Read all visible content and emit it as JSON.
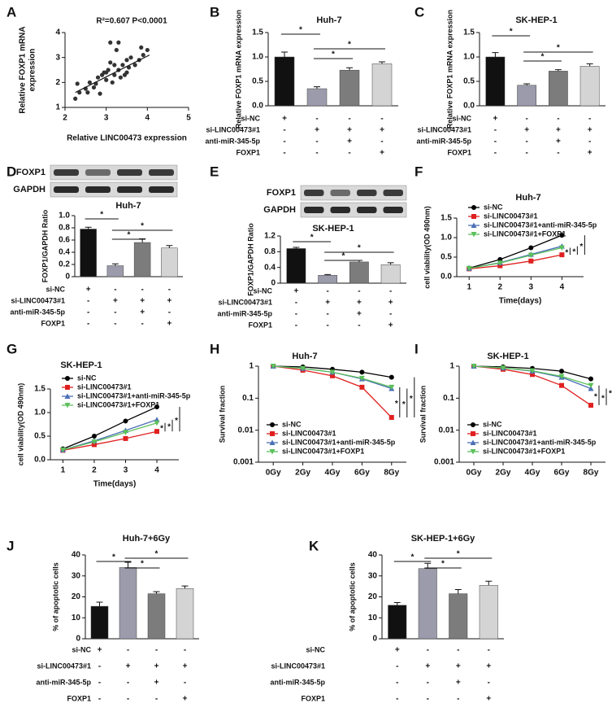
{
  "chart_data": [
    {
      "panel": "A",
      "type": "scatter",
      "annotation": "R²=0.607 P<0.0001",
      "ylabel": [
        "Relative FOXP1 mRNA",
        "expression"
      ],
      "xlabel": "Relative LINC00473 expression",
      "xlim": [
        2,
        5
      ],
      "xticks": [
        2,
        3,
        4,
        5
      ],
      "ylim": [
        1,
        4
      ],
      "yticks": [
        1,
        2,
        3,
        4
      ],
      "color": "#333333",
      "x": [
        2.25,
        2.3,
        2.35,
        2.5,
        2.55,
        2.6,
        2.7,
        2.75,
        2.8,
        2.85,
        2.9,
        2.95,
        3.0,
        3.0,
        3.05,
        3.1,
        3.15,
        3.2,
        3.2,
        3.25,
        3.3,
        3.3,
        3.35,
        3.4,
        3.45,
        3.5,
        3.5,
        3.55,
        3.6,
        3.7,
        3.8,
        3.85,
        3.9,
        4.0,
        3.1
      ],
      "y": [
        1.35,
        1.95,
        1.6,
        1.75,
        1.6,
        2.0,
        1.8,
        1.95,
        2.2,
        1.55,
        2.3,
        2.4,
        2.4,
        2.1,
        2.5,
        2.8,
        2.0,
        2.7,
        2.3,
        3.3,
        3.6,
        2.5,
        2.2,
        2.7,
        2.3,
        2.9,
        2.4,
        2.6,
        3.0,
        2.7,
        2.9,
        3.4,
        3.1,
        3.3,
        3.6
      ],
      "trend_line": {
        "x": [
          2.25,
          4.05
        ],
        "y": [
          1.6,
          3.1
        ]
      }
    },
    {
      "panel": "B",
      "type": "bar",
      "title": "Huh-7",
      "ylabel": "Relative FOXP1 mRNA expression",
      "categories": [
        null,
        null,
        null,
        null
      ],
      "values": [
        1.0,
        0.35,
        0.73,
        0.86
      ],
      "errors": [
        0.1,
        0.04,
        0.05,
        0.04
      ],
      "colors": [
        "#111111",
        "#9b9bab",
        "#7c7c7c",
        "#d4d4d4"
      ],
      "ylim": [
        0,
        1.5
      ],
      "yticks": [
        {
          "value": 0,
          "label": "0.0"
        },
        0.5,
        {
          "value": 1,
          "label": "1.0"
        },
        1.5
      ],
      "annotations": [
        "*",
        "*",
        "*"
      ],
      "conditions": [
        {
          "label": "si-NC",
          "signs": [
            "+",
            "-",
            "-",
            "-"
          ]
        },
        {
          "label": "si-LINC00473#1",
          "signs": [
            "-",
            "+",
            "+",
            "+"
          ]
        },
        {
          "label": "anti-miR-345-5p",
          "signs": [
            "-",
            "-",
            "+",
            "-"
          ]
        },
        {
          "label": "FOXP1",
          "signs": [
            "-",
            "-",
            "-",
            "+"
          ]
        }
      ]
    },
    {
      "panel": "C",
      "type": "bar",
      "title": "SK-HEP-1",
      "ylabel": "Relative FOXP1 mRNA expression",
      "categories": [
        null,
        null,
        null,
        null
      ],
      "values": [
        1.0,
        0.42,
        0.71,
        0.81
      ],
      "errors": [
        0.09,
        0.03,
        0.03,
        0.05
      ],
      "colors": [
        "#111111",
        "#9b9bab",
        "#7c7c7c",
        "#d4d4d4"
      ],
      "ylim": [
        0,
        1.5
      ],
      "yticks": [
        {
          "value": 0,
          "label": "0.0"
        },
        0.5,
        {
          "value": 1,
          "label": "1.0"
        },
        1.5
      ],
      "annotations": [
        "*",
        "*",
        "*"
      ],
      "conditions": [
        {
          "label": "si-NC",
          "signs": [
            "+",
            "-",
            "-",
            "-"
          ]
        },
        {
          "label": "si-LINC00473#1",
          "signs": [
            "-",
            "+",
            "+",
            "+"
          ]
        },
        {
          "label": "anti-miR-345-5p",
          "signs": [
            "-",
            "-",
            "+",
            "-"
          ]
        },
        {
          "label": "FOXP1",
          "signs": [
            "-",
            "-",
            "-",
            "+"
          ]
        }
      ]
    },
    {
      "panel": "D",
      "type": "bar",
      "title": "Huh-7",
      "ylabel": "FOXP1/GAPDH Ratio",
      "blot_labels": [
        "FOXP1",
        "GAPDH"
      ],
      "categories": [
        null,
        null,
        null,
        null
      ],
      "values": [
        0.78,
        0.18,
        0.56,
        0.47
      ],
      "errors": [
        0.03,
        0.03,
        0.06,
        0.04
      ],
      "colors": [
        "#111111",
        "#9b9bab",
        "#7c7c7c",
        "#d4d4d4"
      ],
      "ylim": [
        0,
        1
      ],
      "yticks": [
        0,
        0.2,
        0.4,
        0.6,
        0.8,
        {
          "value": 1,
          "label": "1.0"
        }
      ],
      "annotations": [
        "*",
        "*",
        "*"
      ],
      "conditions": [
        {
          "label": "si-NC",
          "signs": [
            "+",
            "-",
            "-",
            "-"
          ]
        },
        {
          "label": "si-LINC00473#1",
          "signs": [
            "-",
            "+",
            "+",
            "+"
          ]
        },
        {
          "label": "anti-miR-345-5p",
          "signs": [
            "-",
            "-",
            "+",
            "-"
          ]
        },
        {
          "label": "FOXP1",
          "signs": [
            "-",
            "-",
            "-",
            "+"
          ]
        }
      ]
    },
    {
      "panel": "E",
      "type": "bar",
      "title": "SK-HEP-1",
      "ylabel": "FOXP1/GAPDH Ratio",
      "blot_labels": [
        "FOXP1",
        "GAPDH"
      ],
      "categories": [
        null,
        null,
        null,
        null
      ],
      "values": [
        0.88,
        0.2,
        0.54,
        0.47
      ],
      "errors": [
        0.03,
        0.02,
        0.04,
        0.05
      ],
      "colors": [
        "#111111",
        "#9b9bab",
        "#7c7c7c",
        "#d4d4d4"
      ],
      "ylim": [
        0,
        1.2
      ],
      "yticks": [
        0,
        0.4,
        0.8,
        1.2
      ],
      "annotations": [
        "*",
        "*",
        "*"
      ],
      "conditions": [
        {
          "label": "si-NC",
          "signs": [
            "+",
            "-",
            "-",
            "-"
          ]
        },
        {
          "label": "si-LINC00473#1",
          "signs": [
            "-",
            "+",
            "+",
            "+"
          ]
        },
        {
          "label": "anti-miR-345-5p",
          "signs": [
            "-",
            "-",
            "+",
            "-"
          ]
        },
        {
          "label": "FOXP1",
          "signs": [
            "-",
            "-",
            "-",
            "+"
          ]
        }
      ]
    },
    {
      "panel": "F",
      "type": "line",
      "title": "Huh-7",
      "ylabel": "cell viability(OD 490nm)",
      "xlabel": "Time(days)",
      "x": [
        1,
        2,
        3,
        4
      ],
      "xlim": [
        0.6,
        4.7
      ],
      "xticks": [
        1,
        2,
        3,
        4
      ],
      "ylim": [
        0,
        1.5
      ],
      "yticks": [
        {
          "value": 0,
          "label": "0.0"
        },
        0.5,
        {
          "value": 1,
          "label": "1.0"
        },
        1.5
      ],
      "legend": "upper left",
      "annotations": [
        "*",
        "*",
        "*"
      ],
      "series": [
        {
          "name": "si-NC",
          "color": "#000000",
          "marker": "circle",
          "values": [
            0.22,
            0.44,
            0.74,
            1.06
          ]
        },
        {
          "name": "si-LINC00473#1",
          "color": "#e02020",
          "marker": "square",
          "values": [
            0.2,
            0.28,
            0.4,
            0.56
          ]
        },
        {
          "name": "si-LINC00473#1+anti-miR-345-5p",
          "color": "#4a6fb5",
          "marker": "triangle",
          "values": [
            0.21,
            0.36,
            0.57,
            0.78
          ]
        },
        {
          "name": "si-LINC00473#1+FOXP1",
          "color": "#5cc05c",
          "marker": "triangle-down",
          "values": [
            0.21,
            0.35,
            0.55,
            0.74
          ]
        }
      ]
    },
    {
      "panel": "G",
      "type": "line",
      "title": "SK-HEP-1",
      "ylabel": "cell viability(OD 490nm)",
      "xlabel": "Time(days)",
      "x": [
        1,
        2,
        3,
        4
      ],
      "xlim": [
        0.6,
        4.7
      ],
      "xticks": [
        1,
        2,
        3,
        4
      ],
      "ylim": [
        0,
        1.5
      ],
      "yticks": [
        {
          "value": 0,
          "label": "0.0"
        },
        0.5,
        {
          "value": 1,
          "label": "1.0"
        },
        1.5
      ],
      "legend": "upper left",
      "annotations": [
        "*",
        "*",
        "*"
      ],
      "series": [
        {
          "name": "si-NC",
          "color": "#000000",
          "marker": "circle",
          "values": [
            0.23,
            0.5,
            0.82,
            1.12
          ]
        },
        {
          "name": "si-LINC00473#1",
          "color": "#e02020",
          "marker": "square",
          "values": [
            0.2,
            0.32,
            0.45,
            0.6
          ]
        },
        {
          "name": "si-LINC00473#1+anti-miR-345-5p",
          "color": "#4a6fb5",
          "marker": "triangle",
          "values": [
            0.21,
            0.4,
            0.62,
            0.85
          ]
        },
        {
          "name": "si-LINC00473#1+FOXP1",
          "color": "#5cc05c",
          "marker": "triangle-down",
          "values": [
            0.21,
            0.38,
            0.58,
            0.78
          ]
        }
      ]
    },
    {
      "panel": "H",
      "type": "line",
      "title": "Huh-7",
      "ylabel": "Survival fraction",
      "log_scale": true,
      "categories": [
        "0Gy",
        "2Gy",
        "4Gy",
        "6Gy",
        "8Gy"
      ],
      "ylim": [
        0.001,
        1
      ],
      "yticks": [
        1,
        0.1,
        0.01,
        0.001
      ],
      "legend": "lower left",
      "annotations": [
        "*",
        "*",
        "*"
      ],
      "series": [
        {
          "name": "si-NC",
          "color": "#000000",
          "marker": "circle",
          "values": [
            1,
            0.95,
            0.8,
            0.65,
            0.45
          ]
        },
        {
          "name": "si-LINC00473#1",
          "color": "#e02020",
          "marker": "square",
          "values": [
            1,
            0.75,
            0.5,
            0.22,
            0.025
          ]
        },
        {
          "name": "si-LINC00473#1+anti-miR-345-5p",
          "color": "#4a6fb5",
          "marker": "triangle",
          "values": [
            1,
            0.85,
            0.65,
            0.4,
            0.2
          ]
        },
        {
          "name": "si-LINC00473#1+FOXP1",
          "color": "#5cc05c",
          "marker": "triangle-down",
          "values": [
            1,
            0.85,
            0.65,
            0.42,
            0.22
          ]
        }
      ]
    },
    {
      "panel": "I",
      "type": "line",
      "title": "SK-HEP-1",
      "ylabel": "Survival fraction",
      "log_scale": true,
      "categories": [
        "0Gy",
        "2Gy",
        "4Gy",
        "6Gy",
        "8Gy"
      ],
      "ylim": [
        0.001,
        1
      ],
      "yticks": [
        1,
        0.1,
        0.01,
        0.001
      ],
      "legend": "lower left",
      "annotations": [
        "*",
        "*",
        "*"
      ],
      "series": [
        {
          "name": "si-NC",
          "color": "#000000",
          "marker": "circle",
          "values": [
            1,
            0.95,
            0.85,
            0.7,
            0.4
          ]
        },
        {
          "name": "si-LINC00473#1",
          "color": "#e02020",
          "marker": "square",
          "values": [
            1,
            0.8,
            0.55,
            0.25,
            0.06
          ]
        },
        {
          "name": "si-LINC00473#1+anti-miR-345-5p",
          "color": "#4a6fb5",
          "marker": "triangle",
          "values": [
            1,
            0.88,
            0.7,
            0.45,
            0.2
          ]
        },
        {
          "name": "si-LINC00473#1+FOXP1",
          "color": "#5cc05c",
          "marker": "triangle-down",
          "values": [
            1,
            0.88,
            0.72,
            0.48,
            0.25
          ]
        }
      ]
    },
    {
      "panel": "J",
      "type": "bar",
      "title": "Huh-7+6Gy",
      "ylabel": "% of apoptotic cells",
      "categories": [
        null,
        null,
        null,
        null
      ],
      "values": [
        15.5,
        34,
        21.5,
        24
      ],
      "errors": [
        2,
        2.5,
        1,
        1.2
      ],
      "colors": [
        "#111111",
        "#9b9bab",
        "#7c7c7c",
        "#d4d4d4"
      ],
      "ylim": [
        0,
        40
      ],
      "yticks": [
        0,
        10,
        20,
        30,
        40
      ],
      "annotations": [
        "*",
        "*",
        "*"
      ],
      "conditions": [
        {
          "label": "si-NC",
          "signs": [
            "+",
            "-",
            "-",
            "-"
          ]
        },
        {
          "label": "si-LINC00473#1",
          "signs": [
            "-",
            "+",
            "+",
            "+"
          ]
        },
        {
          "label": "anti-miR-345-5p",
          "signs": [
            "-",
            "-",
            "+",
            "-"
          ]
        },
        {
          "label": "FOXP1",
          "signs": [
            "-",
            "-",
            "-",
            "+"
          ]
        }
      ]
    },
    {
      "panel": "K",
      "type": "bar",
      "title": "SK-HEP-1+6Gy",
      "ylabel": "% of apoptotic cells",
      "categories": [
        null,
        null,
        null,
        null
      ],
      "values": [
        16,
        33.5,
        21.5,
        25.5
      ],
      "errors": [
        1.3,
        2.5,
        2,
        2
      ],
      "colors": [
        "#111111",
        "#9b9bab",
        "#7c7c7c",
        "#d4d4d4"
      ],
      "ylim": [
        0,
        40
      ],
      "yticks": [
        0,
        10,
        20,
        30,
        40
      ],
      "annotations": [
        "*",
        "*",
        "*"
      ],
      "conditions": [
        {
          "label": "si-NC",
          "signs": [
            "+",
            "-",
            "-",
            "-"
          ]
        },
        {
          "label": "si-LINC00473#1",
          "signs": [
            "-",
            "+",
            "+",
            "+"
          ]
        },
        {
          "label": "anti-miR-345-5p",
          "signs": [
            "-",
            "-",
            "+",
            "-"
          ]
        },
        {
          "label": "FOXP1",
          "signs": [
            "-",
            "-",
            "-",
            "+"
          ]
        }
      ]
    }
  ]
}
